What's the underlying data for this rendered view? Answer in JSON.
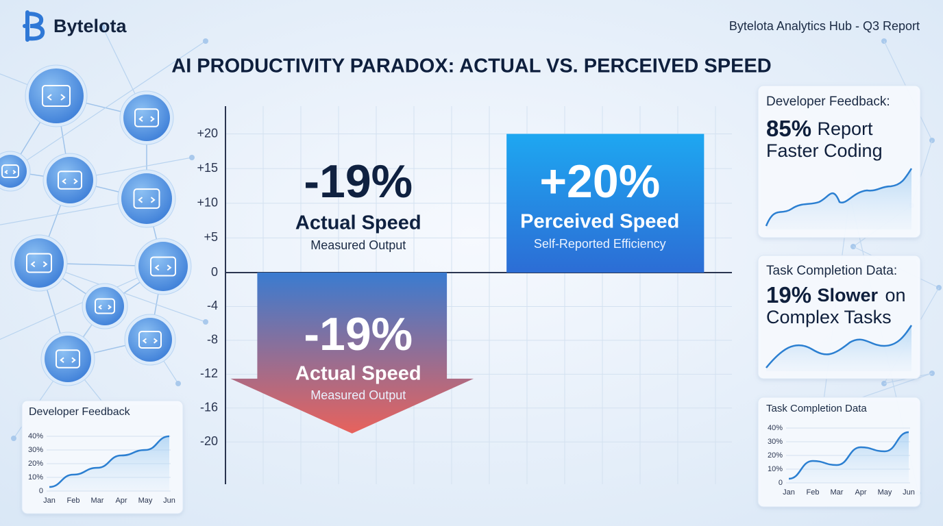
{
  "header": {
    "brand": "Bytelota",
    "report": "Bytelota Analytics Hub - Q3 Report"
  },
  "cards": [
    {
      "heading": "Developer Feedback:",
      "highlight": "85%",
      "text_lines": [
        "Report",
        "Faster Coding"
      ]
    },
    {
      "heading": "Task Completion Data:",
      "highlight": "19%",
      "emphasis": "Slower",
      "text_lines": [
        "on",
        "Complex Tasks"
      ]
    }
  ],
  "chart_data": [
    {
      "type": "bar",
      "title": "AI PRODUCTIVITY PARADOX: ACTUAL VS. PERCEIVED SPEED",
      "categories": [
        "Actual Speed",
        "Perceived Speed"
      ],
      "values": [
        -19,
        20
      ],
      "value_labels": [
        "-19%",
        "+20%"
      ],
      "category_notes": [
        "Measured Output",
        "Self-Reported Efficiency"
      ],
      "gradients": [
        [
          "#3a7bd0",
          "#e8625c"
        ],
        [
          "#1ea7f1",
          "#2c6dd5"
        ]
      ],
      "ylim": [
        -25,
        24
      ],
      "yticks": [
        {
          "value": 20,
          "label": "+20"
        },
        {
          "value": 15,
          "label": "+15"
        },
        {
          "value": 10,
          "label": "+10"
        },
        {
          "value": 5,
          "label": "+5"
        },
        0,
        -4,
        -8,
        -12,
        -16,
        -20
      ],
      "grid": true
    },
    {
      "type": "line",
      "title": "Developer Feedback",
      "categories": [
        "Jan",
        "Feb",
        "Mar",
        "Apr",
        "May",
        "Jun"
      ],
      "values": [
        3,
        12,
        17,
        26,
        30,
        40
      ],
      "color": "#2b7fd1",
      "ylim": [
        0,
        40
      ],
      "yticks": [
        0,
        {
          "value": 10,
          "label": "10%"
        },
        {
          "value": 20,
          "label": "20%"
        },
        {
          "value": 30,
          "label": "30%"
        },
        {
          "value": 40,
          "label": "40%"
        }
      ],
      "grid": true
    },
    {
      "type": "line",
      "title": "Task Completion Data",
      "categories": [
        "Jan",
        "Feb",
        "Mar",
        "Apr",
        "May",
        "Jun"
      ],
      "values": [
        3,
        16,
        13,
        26,
        23,
        37
      ],
      "color": "#2b7fd1",
      "ylim": [
        0,
        40
      ],
      "yticks": [
        0,
        {
          "value": 10,
          "label": "10%"
        },
        {
          "value": 20,
          "label": "20%"
        },
        {
          "value": 30,
          "label": "30%"
        },
        {
          "value": 40,
          "label": "40%"
        }
      ],
      "grid": true
    }
  ]
}
